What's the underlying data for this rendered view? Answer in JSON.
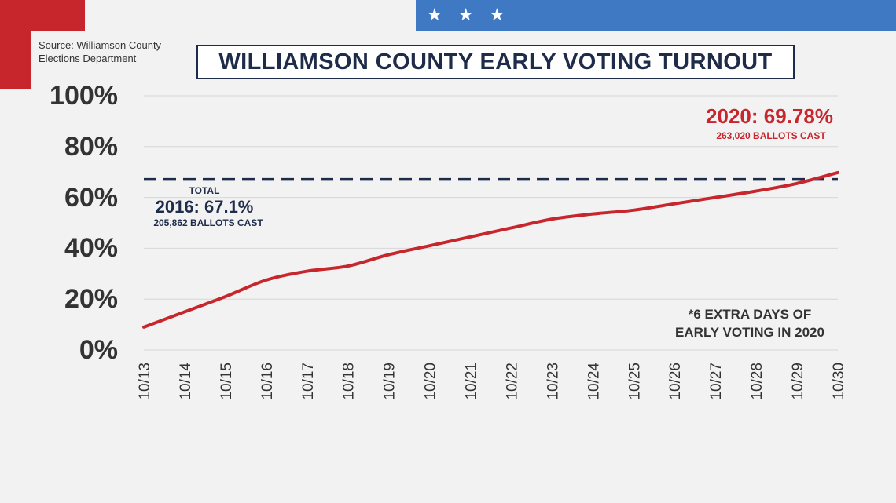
{
  "colors": {
    "background": "#f2f2f2",
    "accent_red": "#c8262d",
    "accent_blue": "#3f79c4",
    "navy": "#1e2c4a",
    "grid": "#d6d6d6"
  },
  "banner": {
    "stars": [
      "★",
      "★",
      "★"
    ],
    "icon": "star-icon"
  },
  "source": {
    "line1": "Source: Williamson County",
    "line2": "Elections Department"
  },
  "title": "WILLIAMSON COUNTY EARLY VOTING TURNOUT",
  "annotations": {
    "total_2016_label": "TOTAL",
    "total_2016_value": "2016: 67.1%",
    "total_2016_ballots": "205,862 BALLOTS CAST",
    "value_2020": "2020: 69.78%",
    "ballots_2020": "263,020 BALLOTS CAST",
    "note_line1": "*6 EXTRA DAYS OF",
    "note_line2": "EARLY VOTING IN 2020"
  },
  "chart_data": {
    "type": "line",
    "title": "WILLIAMSON COUNTY EARLY VOTING TURNOUT",
    "xlabel": "",
    "ylabel": "",
    "categories": [
      "10/13",
      "10/14",
      "10/15",
      "10/16",
      "10/17",
      "10/18",
      "10/19",
      "10/20",
      "10/21",
      "10/22",
      "10/23",
      "10/24",
      "10/25",
      "10/26",
      "10/27",
      "10/28",
      "10/29",
      "10/30"
    ],
    "y_tick_labels": [
      "100%",
      "80%",
      "60%",
      "40%",
      "20%",
      "0%"
    ],
    "y_ticks": [
      100,
      80,
      60,
      40,
      20,
      0
    ],
    "ylim": [
      0,
      100
    ],
    "grid": true,
    "series": [
      {
        "values": [
          9,
          15,
          21,
          27.5,
          31,
          33,
          37.5,
          41,
          44.5,
          48,
          51.5,
          53.5,
          55,
          57.5,
          60,
          62.5,
          65.5,
          69.78
        ],
        "color": "#c8262d",
        "style": "solid"
      }
    ],
    "reference_lines": [
      {
        "value": 67.1,
        "color": "#1e2c4a",
        "style": "dashed"
      }
    ]
  }
}
